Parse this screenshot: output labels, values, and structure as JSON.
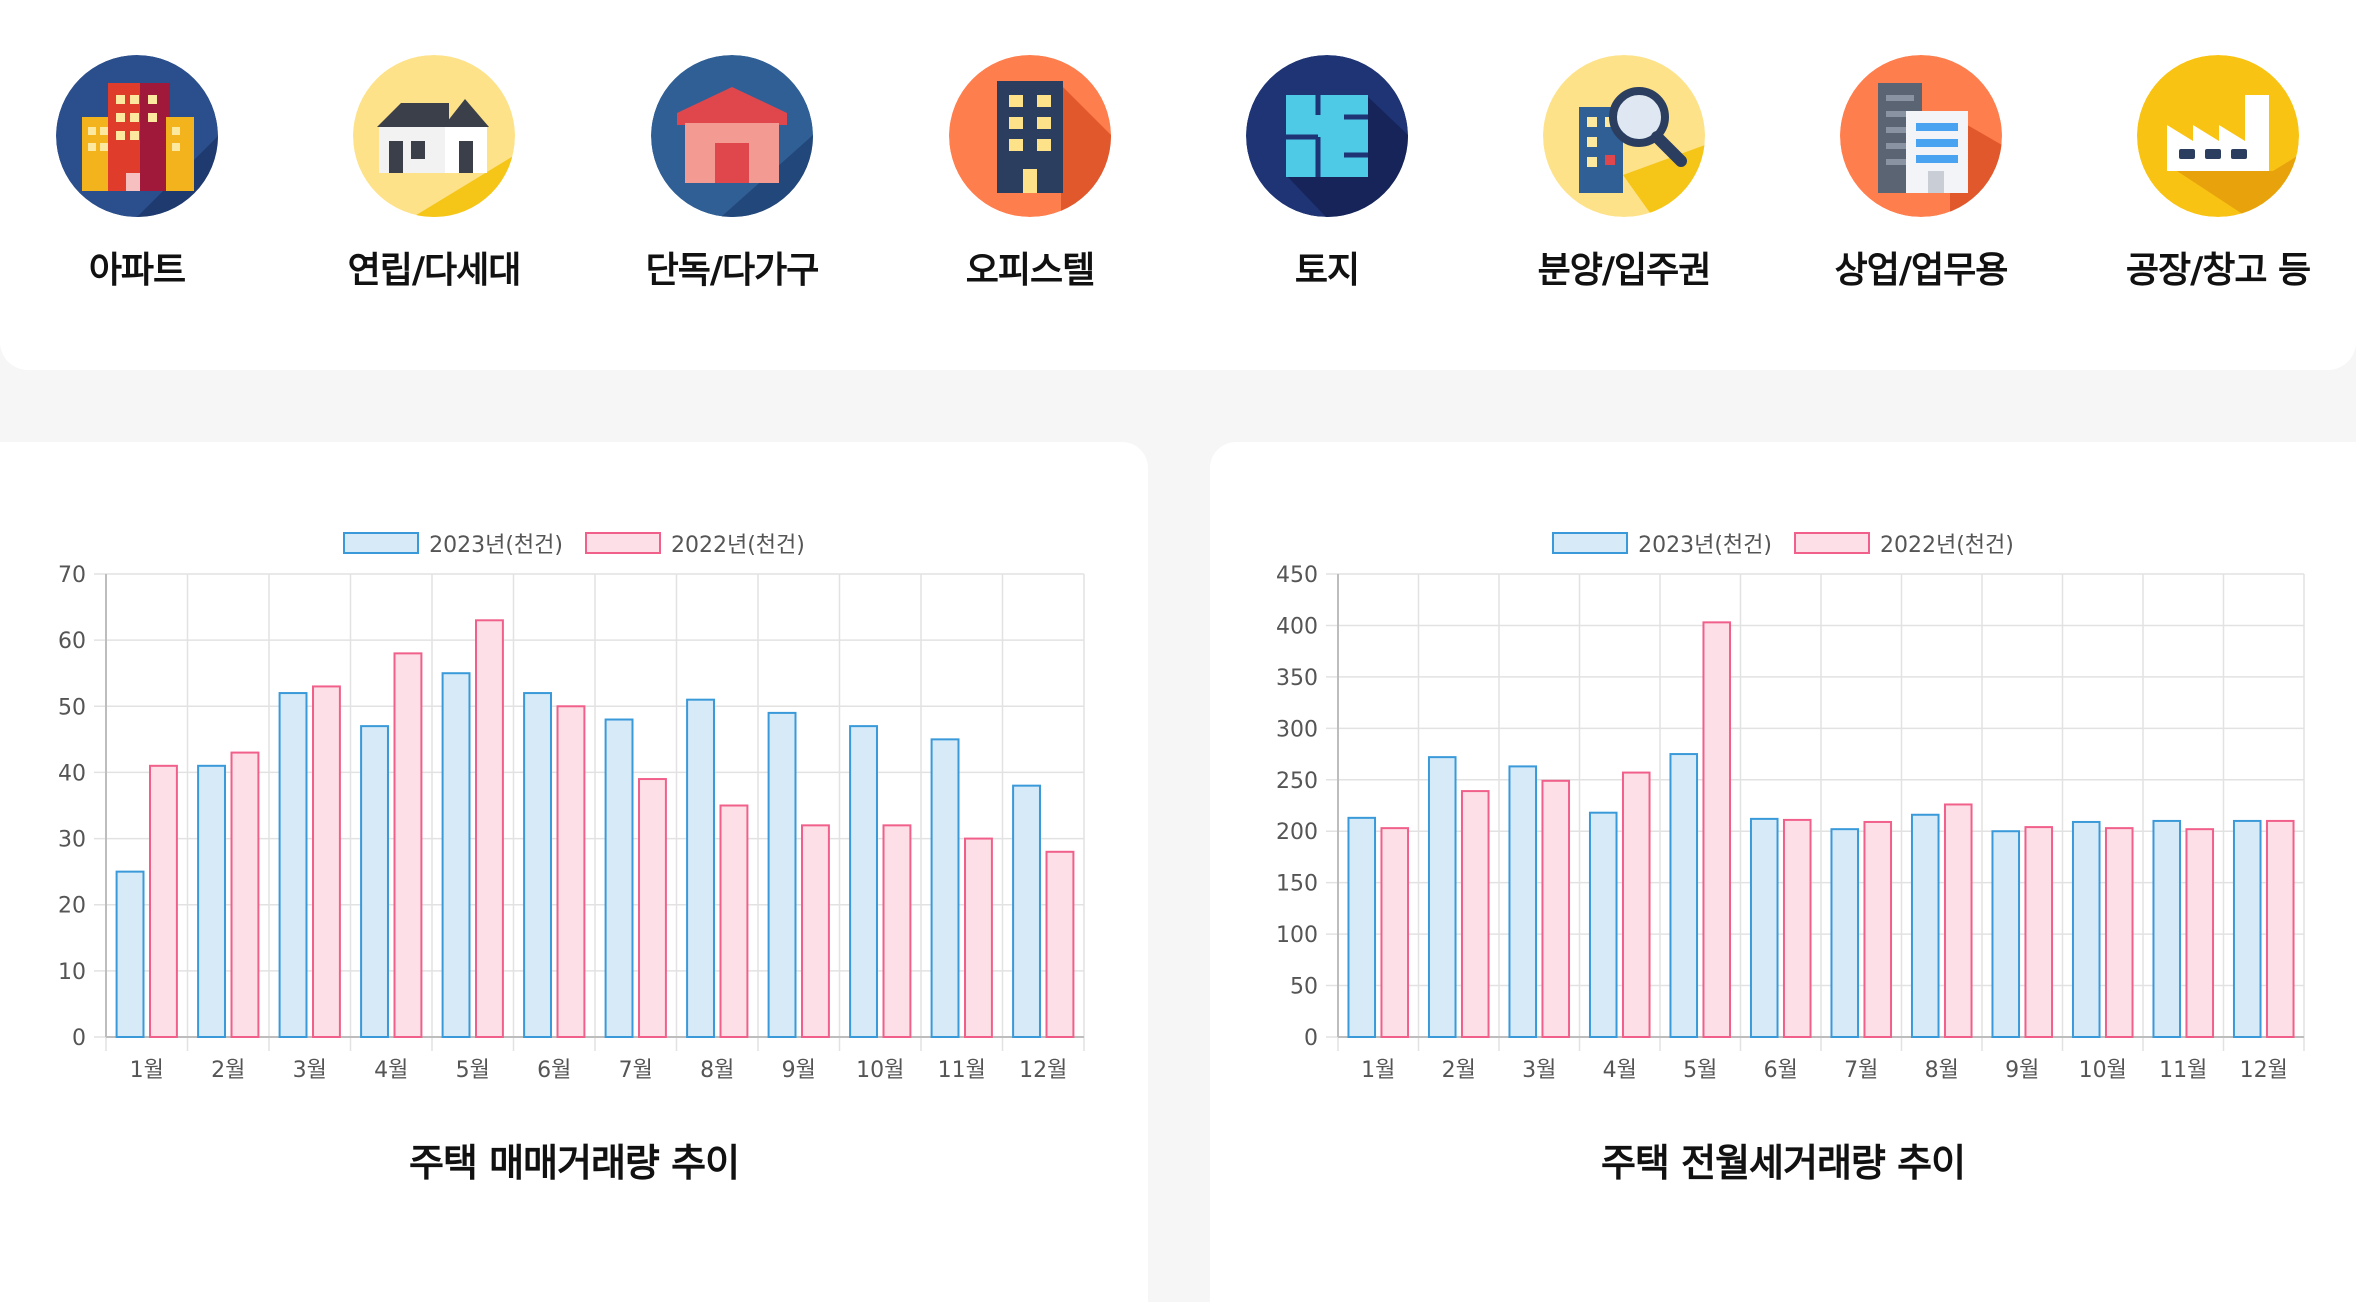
{
  "categories": [
    {
      "label": "아파트",
      "icon": "apartment-icon"
    },
    {
      "label": "연립/다세대",
      "icon": "townhouse-icon"
    },
    {
      "label": "단독/다가구",
      "icon": "detached-house-icon"
    },
    {
      "label": "오피스텔",
      "icon": "officetel-icon"
    },
    {
      "label": "토지",
      "icon": "land-plan-icon"
    },
    {
      "label": "분양/입주권",
      "icon": "magnifier-building-icon"
    },
    {
      "label": "상업/업무용",
      "icon": "commercial-building-icon"
    },
    {
      "label": "공장/창고 등",
      "icon": "factory-icon"
    }
  ],
  "colors": {
    "series_2023_border": "#3a9ad9",
    "series_2023_fill": "#d6eaf8",
    "series_2022_border": "#f0608a",
    "series_2022_fill": "#fde0e7",
    "grid": "#e2e2e2",
    "tick_text": "#555555"
  },
  "chart_data": [
    {
      "type": "bar",
      "title": "주택 매매거래량 추이",
      "categories": [
        "1월",
        "2월",
        "3월",
        "4월",
        "5월",
        "6월",
        "7월",
        "8월",
        "9월",
        "10월",
        "11월",
        "12월"
      ],
      "series": [
        {
          "name": "2023년(천건)",
          "values": [
            25,
            41,
            52,
            47,
            55,
            52,
            48,
            51,
            49,
            47,
            45,
            38
          ]
        },
        {
          "name": "2022년(천건)",
          "values": [
            41,
            43,
            53,
            58,
            63,
            50,
            39,
            35,
            32,
            32,
            30,
            28
          ]
        }
      ],
      "yticks": [
        0,
        10,
        20,
        30,
        40,
        50,
        60,
        70
      ],
      "ylim": [
        0,
        70
      ],
      "legend": "top-center",
      "grid": true
    },
    {
      "type": "bar",
      "title": "주택 전월세거래량 추이",
      "categories": [
        "1월",
        "2월",
        "3월",
        "4월",
        "5월",
        "6월",
        "7월",
        "8월",
        "9월",
        "10월",
        "11월",
        "12월"
      ],
      "series": [
        {
          "name": "2023년(천건)",
          "values": [
            213,
            272,
            263,
            218,
            275,
            212,
            202,
            216,
            200,
            209,
            210,
            210
          ]
        },
        {
          "name": "2022년(천건)",
          "values": [
            203,
            239,
            249,
            257,
            403,
            211,
            209,
            226,
            204,
            203,
            202,
            210
          ]
        }
      ],
      "yticks": [
        0,
        50,
        100,
        150,
        200,
        250,
        300,
        350,
        400,
        450
      ],
      "ylim": [
        0,
        450
      ],
      "legend": "top-center",
      "grid": true
    }
  ]
}
